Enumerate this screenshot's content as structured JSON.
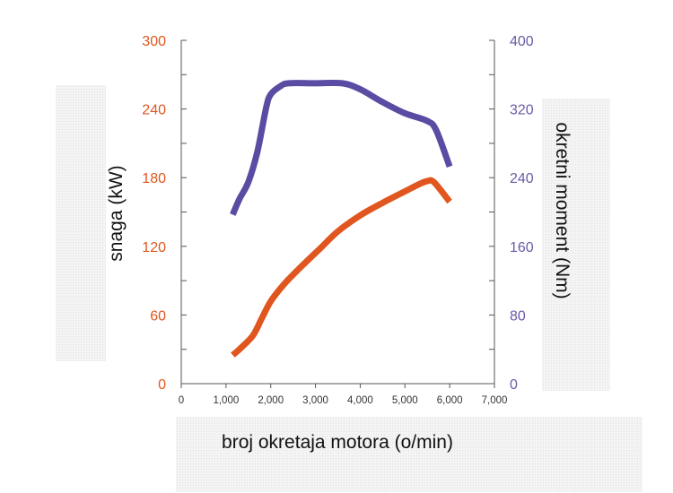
{
  "chart_data": {
    "type": "line",
    "xlabel": "broj okretaja motora (o/min)",
    "ylabel_left": "snaga (kW)",
    "ylabel_right": "okretni moment (Nm)",
    "xlim": [
      0,
      7000
    ],
    "ylim_left": [
      0,
      300
    ],
    "ylim_right": [
      0,
      400
    ],
    "x_ticks": [
      "0",
      "1,000",
      "2,000",
      "3,000",
      "4,000",
      "5,000",
      "6,000",
      "7,000"
    ],
    "y_ticks_left": [
      "0",
      "60",
      "120",
      "180",
      "240",
      "300"
    ],
    "y_ticks_right": [
      "0",
      "80",
      "160",
      "240",
      "320",
      "400"
    ],
    "grid": false,
    "series": [
      {
        "axis": "right",
        "color": "#5a4ba3",
        "x": [
          1150,
          1300,
          1500,
          1700,
          1900,
          2000,
          2200,
          2400,
          3000,
          3600,
          4000,
          4500,
          5000,
          5500,
          5700,
          6000
        ],
        "y": [
          197,
          215,
          235,
          270,
          322,
          337,
          346,
          350,
          350,
          350,
          343,
          328,
          315,
          306,
          295,
          253
        ]
      },
      {
        "axis": "left",
        "color": "#e0561e",
        "x": [
          1150,
          1300,
          1600,
          1800,
          2000,
          2300,
          2700,
          3100,
          3500,
          4000,
          4500,
          5000,
          5300,
          5500,
          5650,
          6000
        ],
        "y": [
          25,
          30,
          42,
          57,
          72,
          87,
          103,
          118,
          133,
          147,
          158,
          168,
          174,
          177,
          176,
          159
        ]
      }
    ]
  }
}
